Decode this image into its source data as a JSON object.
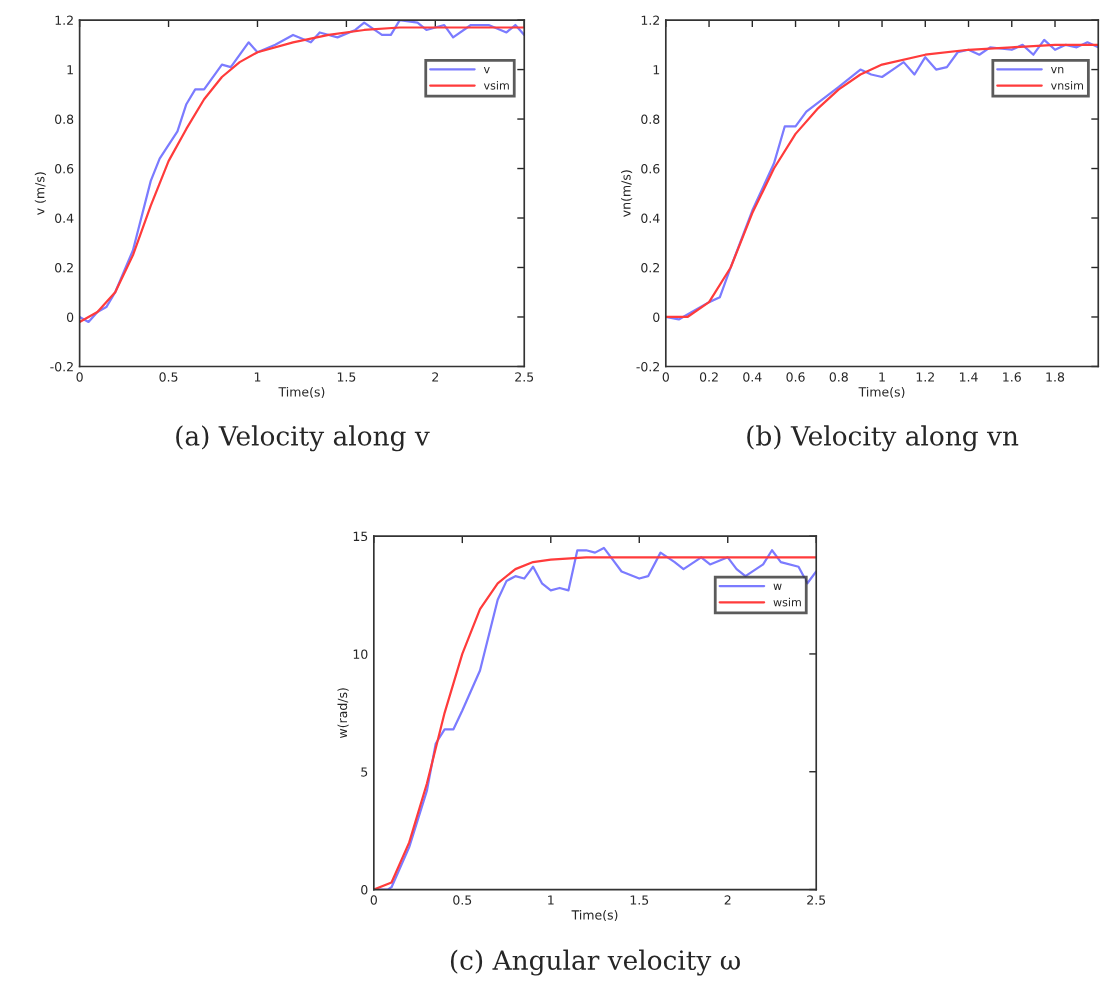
{
  "chart_data": [
    {
      "type": "line",
      "title": "(a) Velocity along v",
      "xlabel": "Time(s)",
      "ylabel": "v (m/s)",
      "xlim": [
        0,
        2.5
      ],
      "ylim": [
        -0.2,
        1.2
      ],
      "xticks": [
        0,
        0.5,
        1,
        1.5,
        2,
        2.5
      ],
      "yticks": [
        -0.2,
        0,
        0.2,
        0.4,
        0.6,
        0.8,
        1,
        1.2
      ],
      "legend": "top right",
      "grid": false,
      "series": [
        {
          "name": "v",
          "color": "#7b7bff",
          "x": [
            0,
            0.05,
            0.1,
            0.15,
            0.2,
            0.3,
            0.4,
            0.45,
            0.55,
            0.6,
            0.65,
            0.7,
            0.8,
            0.85,
            0.95,
            1.0,
            1.1,
            1.2,
            1.3,
            1.35,
            1.45,
            1.55,
            1.6,
            1.7,
            1.75,
            1.8,
            1.9,
            1.95,
            2.05,
            2.1,
            2.2,
            2.3,
            2.4,
            2.45,
            2.5
          ],
          "values": [
            0,
            -0.02,
            0.02,
            0.04,
            0.1,
            0.27,
            0.55,
            0.64,
            0.75,
            0.86,
            0.92,
            0.92,
            1.02,
            1.01,
            1.11,
            1.07,
            1.1,
            1.14,
            1.11,
            1.15,
            1.13,
            1.16,
            1.19,
            1.14,
            1.14,
            1.2,
            1.19,
            1.16,
            1.18,
            1.13,
            1.18,
            1.18,
            1.15,
            1.18,
            1.14
          ]
        },
        {
          "name": "vsim",
          "color": "#ff3b3b",
          "x": [
            0,
            0.1,
            0.2,
            0.3,
            0.4,
            0.5,
            0.6,
            0.7,
            0.8,
            0.9,
            1.0,
            1.2,
            1.4,
            1.6,
            1.8,
            2.0,
            2.5
          ],
          "values": [
            -0.02,
            0.02,
            0.1,
            0.25,
            0.45,
            0.63,
            0.76,
            0.88,
            0.97,
            1.03,
            1.07,
            1.11,
            1.14,
            1.16,
            1.17,
            1.17,
            1.17
          ]
        }
      ]
    },
    {
      "type": "line",
      "title": "(b) Velocity along vn",
      "xlabel": "Time(s)",
      "ylabel": "vn(m/s)",
      "xlim": [
        0,
        2
      ],
      "ylim": [
        -0.2,
        1.2
      ],
      "xticks": [
        0,
        0.2,
        0.4,
        0.6,
        0.8,
        1,
        1.2,
        1.4,
        1.6,
        1.8
      ],
      "yticks": [
        -0.2,
        0,
        0.2,
        0.4,
        0.6,
        0.8,
        1,
        1.2
      ],
      "legend": "top right",
      "grid": false,
      "series": [
        {
          "name": "vn",
          "color": "#7b7bff",
          "x": [
            0,
            0.06,
            0.1,
            0.2,
            0.25,
            0.3,
            0.4,
            0.5,
            0.55,
            0.6,
            0.65,
            0.8,
            0.9,
            0.95,
            1.0,
            1.05,
            1.1,
            1.15,
            1.2,
            1.25,
            1.3,
            1.35,
            1.4,
            1.45,
            1.5,
            1.6,
            1.65,
            1.7,
            1.75,
            1.8,
            1.85,
            1.9,
            1.95,
            2.0
          ],
          "values": [
            0,
            -0.01,
            0.01,
            0.06,
            0.08,
            0.2,
            0.43,
            0.62,
            0.77,
            0.77,
            0.83,
            0.93,
            1.0,
            0.98,
            0.97,
            1.0,
            1.03,
            0.98,
            1.05,
            1.0,
            1.01,
            1.07,
            1.08,
            1.06,
            1.09,
            1.08,
            1.1,
            1.06,
            1.12,
            1.08,
            1.1,
            1.09,
            1.11,
            1.09
          ]
        },
        {
          "name": "vnsim",
          "color": "#ff3b3b",
          "x": [
            0,
            0.1,
            0.2,
            0.3,
            0.4,
            0.5,
            0.6,
            0.7,
            0.8,
            0.9,
            1.0,
            1.2,
            1.4,
            1.6,
            1.8,
            2.0
          ],
          "values": [
            0,
            0,
            0.06,
            0.2,
            0.42,
            0.6,
            0.74,
            0.84,
            0.92,
            0.98,
            1.02,
            1.06,
            1.08,
            1.09,
            1.1,
            1.1
          ]
        }
      ]
    },
    {
      "type": "line",
      "title": "(c) Angular velocity ω",
      "xlabel": "Time(s)",
      "ylabel": "w(rad/s)",
      "xlim": [
        0,
        2.5
      ],
      "ylim": [
        0,
        15
      ],
      "xticks": [
        0,
        0.5,
        1,
        1.5,
        2,
        2.5
      ],
      "yticks": [
        0,
        5,
        10,
        15
      ],
      "legend": "top right",
      "grid": false,
      "series": [
        {
          "name": "w",
          "color": "#7b7bff",
          "x": [
            0,
            0.08,
            0.1,
            0.2,
            0.3,
            0.35,
            0.4,
            0.45,
            0.5,
            0.6,
            0.7,
            0.75,
            0.8,
            0.85,
            0.9,
            0.95,
            1.0,
            1.05,
            1.1,
            1.15,
            1.2,
            1.25,
            1.3,
            1.35,
            1.4,
            1.5,
            1.55,
            1.62,
            1.7,
            1.75,
            1.85,
            1.9,
            2.0,
            2.05,
            2.1,
            2.2,
            2.25,
            2.3,
            2.4,
            2.45,
            2.5
          ],
          "values": [
            0,
            0,
            0.1,
            1.8,
            4.2,
            6.2,
            6.8,
            6.8,
            7.6,
            9.3,
            12.3,
            13.1,
            13.3,
            13.2,
            13.7,
            13.0,
            12.7,
            12.8,
            12.7,
            14.4,
            14.4,
            14.3,
            14.5,
            14.0,
            13.5,
            13.2,
            13.3,
            14.3,
            13.9,
            13.6,
            14.1,
            13.8,
            14.1,
            13.6,
            13.3,
            13.8,
            14.4,
            13.9,
            13.7,
            13.0,
            13.5
          ]
        },
        {
          "name": "wsim",
          "color": "#ff3b3b",
          "x": [
            0,
            0.1,
            0.2,
            0.3,
            0.4,
            0.5,
            0.6,
            0.7,
            0.8,
            0.9,
            1.0,
            1.2,
            1.5,
            2.5
          ],
          "values": [
            0,
            0.3,
            2,
            4.5,
            7.5,
            10,
            11.9,
            13,
            13.6,
            13.9,
            14.0,
            14.1,
            14.1,
            14.1
          ]
        }
      ]
    }
  ]
}
